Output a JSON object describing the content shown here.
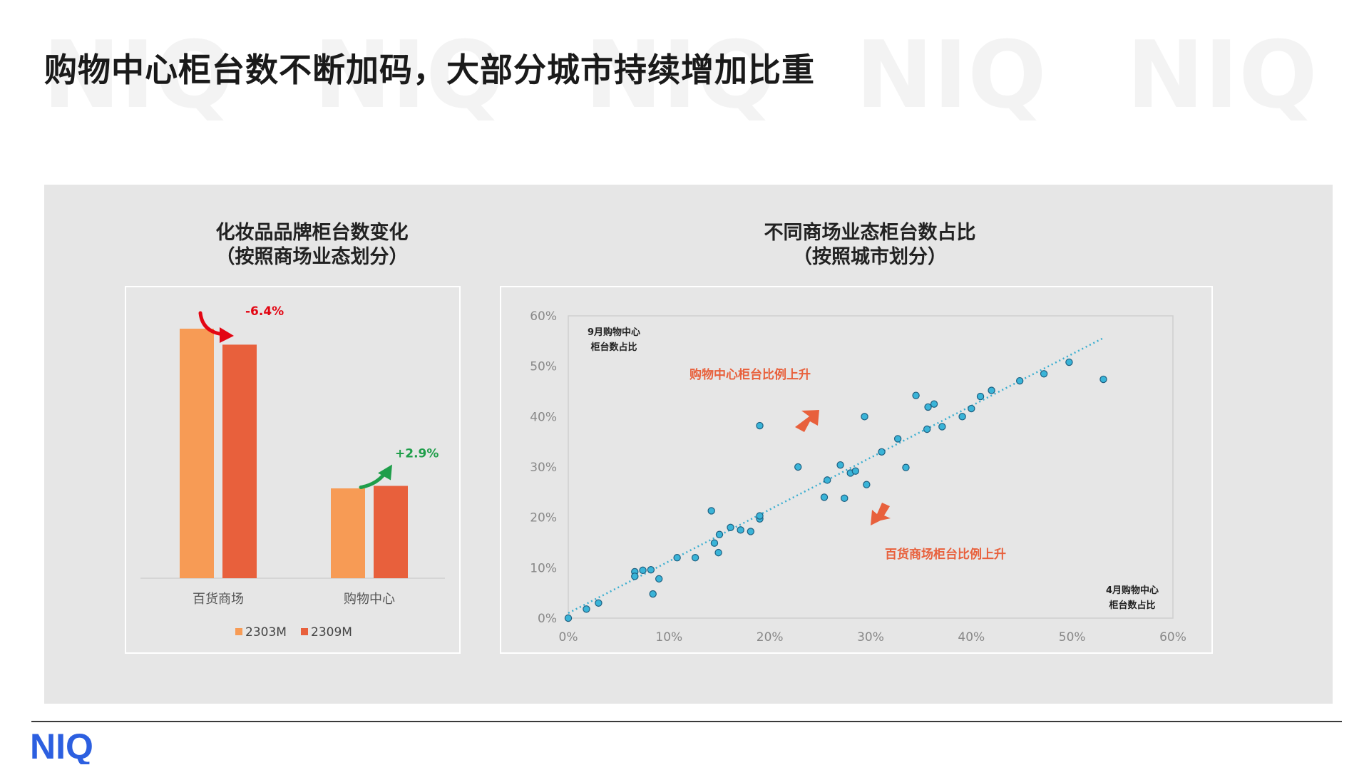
{
  "page": {
    "title": "购物中心柜台数不断加码，大部分城市持续增加比重",
    "logo_text": "NIQ",
    "brand_color": "#2c5fe0"
  },
  "chart_data": [
    {
      "type": "bar",
      "title": "化妆品品牌柜台数变化",
      "subtitle": "（按照商场业态划分）",
      "categories": [
        "百货商场",
        "购物中心"
      ],
      "series": [
        {
          "name": "2303M",
          "color": "#f79b55",
          "values": [
            100,
            36
          ]
        },
        {
          "name": "2309M",
          "color": "#e8603c",
          "values": [
            93.6,
            37
          ]
        }
      ],
      "annotations": [
        {
          "text": "-6.4%",
          "category": "百货商场",
          "color": "#e30613",
          "direction": "down"
        },
        {
          "text": "+2.9%",
          "category": "购物中心",
          "color": "#1f9e4a",
          "direction": "up"
        }
      ],
      "legend": "bottom",
      "axis_labels_shown": false
    },
    {
      "type": "scatter",
      "title": "不同商场业态柜台数占比",
      "subtitle": "（按照城市划分）",
      "xlim": [
        0,
        0.6
      ],
      "ylim": [
        0,
        0.6
      ],
      "x_ticks": [
        "0%",
        "10%",
        "20%",
        "30%",
        "40%",
        "50%",
        "60%"
      ],
      "y_ticks": [
        "0%",
        "10%",
        "20%",
        "30%",
        "40%",
        "50%",
        "60%"
      ],
      "y_corner_label": [
        "9月购物中心",
        "柜台数占比"
      ],
      "x_corner_label": [
        "4月购物中心",
        "柜台数占比"
      ],
      "trendline": {
        "style": "dotted",
        "color": "#3aaed0",
        "from": [
          0,
          0.01
        ],
        "to": [
          0.53,
          0.555
        ]
      },
      "annotations": [
        {
          "text": "购物中心柜台比例上升",
          "color": "#e8603c"
        },
        {
          "text": "百货商场柜台比例上升",
          "color": "#e8603c"
        }
      ],
      "point_color": "#3ab4d8",
      "points": [
        [
          0.0,
          0.0
        ],
        [
          0.018,
          0.018
        ],
        [
          0.03,
          0.03
        ],
        [
          0.066,
          0.092
        ],
        [
          0.066,
          0.083
        ],
        [
          0.074,
          0.095
        ],
        [
          0.082,
          0.096
        ],
        [
          0.09,
          0.078
        ],
        [
          0.084,
          0.048
        ],
        [
          0.108,
          0.12
        ],
        [
          0.126,
          0.12
        ],
        [
          0.142,
          0.213
        ],
        [
          0.145,
          0.149
        ],
        [
          0.15,
          0.166
        ],
        [
          0.149,
          0.13
        ],
        [
          0.161,
          0.18
        ],
        [
          0.171,
          0.175
        ],
        [
          0.181,
          0.172
        ],
        [
          0.19,
          0.197
        ],
        [
          0.19,
          0.203
        ],
        [
          0.19,
          0.382
        ],
        [
          0.228,
          0.3
        ],
        [
          0.254,
          0.24
        ],
        [
          0.257,
          0.274
        ],
        [
          0.27,
          0.304
        ],
        [
          0.274,
          0.238
        ],
        [
          0.28,
          0.288
        ],
        [
          0.285,
          0.292
        ],
        [
          0.294,
          0.4
        ],
        [
          0.296,
          0.265
        ],
        [
          0.311,
          0.33
        ],
        [
          0.327,
          0.356
        ],
        [
          0.335,
          0.299
        ],
        [
          0.345,
          0.442
        ],
        [
          0.356,
          0.375
        ],
        [
          0.357,
          0.419
        ],
        [
          0.363,
          0.425
        ],
        [
          0.371,
          0.38
        ],
        [
          0.391,
          0.4
        ],
        [
          0.4,
          0.416
        ],
        [
          0.409,
          0.44
        ],
        [
          0.42,
          0.452
        ],
        [
          0.448,
          0.471
        ],
        [
          0.472,
          0.485
        ],
        [
          0.497,
          0.508
        ],
        [
          0.531,
          0.474
        ]
      ]
    }
  ]
}
